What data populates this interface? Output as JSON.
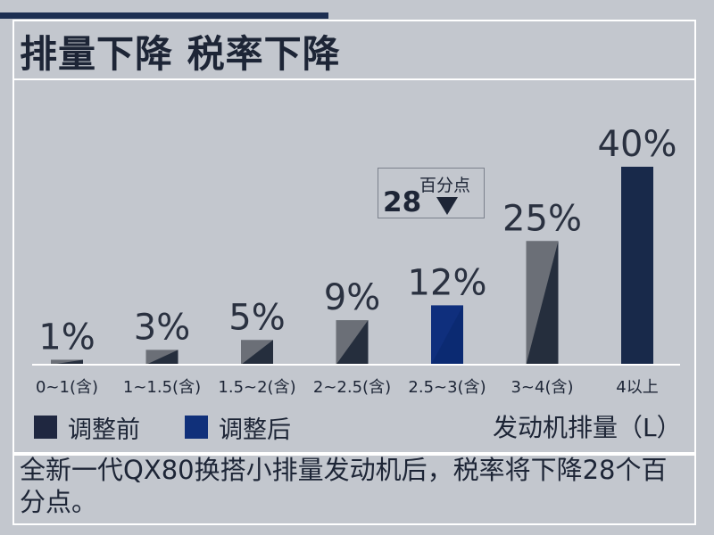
{
  "title": "排量下降 税率下降",
  "callout": {
    "value": "28",
    "unit": "百分点"
  },
  "legend": [
    {
      "label": "调整前",
      "color": "#1f2740"
    },
    {
      "label": "调整后",
      "color": "#10307a"
    }
  ],
  "unit_label": "发动机排量（L）",
  "note": "全新一代QX80换搭小排量发动机后，税率将下降28个百分点。",
  "colors": {
    "gray": "#6b6f77",
    "dark": "#252e3d",
    "blue": "#0f2f7d",
    "navy": "#18294a"
  },
  "chart_data": {
    "type": "bar",
    "categories": [
      "0~1(含)",
      "1~1.5(含)",
      "1.5~2(含)",
      "2~2.5(含)",
      "2.5~3(含)",
      "3~4(含)",
      "4以上"
    ],
    "values": [
      1,
      3,
      5,
      9,
      12,
      25,
      40
    ],
    "value_labels": [
      "1%",
      "3%",
      "5%",
      "9%",
      "12%",
      "25%",
      "40%"
    ],
    "styles": [
      "split",
      "split",
      "split",
      "split",
      "blue",
      "split",
      "navy"
    ],
    "ylim": [
      0,
      40
    ],
    "title": "排量下降 税率下降",
    "xlabel": "发动机排量（L）",
    "ylabel": ""
  }
}
